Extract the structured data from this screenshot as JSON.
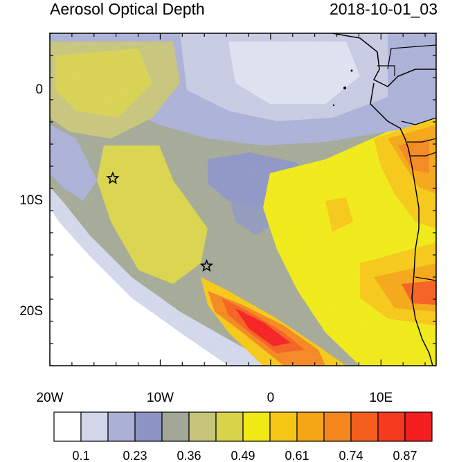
{
  "title": "Aerosol Optical Depth",
  "timestamp": "2018-10-01_03",
  "map": {
    "x_ticks": [
      {
        "lon": -20,
        "label": "20W"
      },
      {
        "lon": -10,
        "label": "10W"
      },
      {
        "lon": 0,
        "label": "0"
      },
      {
        "lon": 10,
        "label": "10E"
      }
    ],
    "y_ticks": [
      {
        "lat": 0,
        "label": "0"
      },
      {
        "lat": -10,
        "label": "10S"
      },
      {
        "lat": -20,
        "label": "20S"
      }
    ],
    "lon_range": [
      -20,
      15
    ],
    "lat_range": [
      -25,
      5
    ],
    "markers": [
      {
        "name": "star-marker",
        "lon": -14.3,
        "lat": -8.1
      },
      {
        "name": "star-marker",
        "lon": -5.8,
        "lat": -16.0
      }
    ]
  },
  "colorbar": {
    "colors": [
      "#ffffff",
      "#d2d6ea",
      "#aab0d6",
      "#8c95c4",
      "#a3a896",
      "#c6c47a",
      "#d9d34a",
      "#efe914",
      "#f5c714",
      "#f4a614",
      "#f4861e",
      "#f45f1e",
      "#f4391e",
      "#f41e1e"
    ],
    "labels": [
      "0.1",
      "0.23",
      "0.36",
      "0.49",
      "0.61",
      "0.74",
      "0.87"
    ]
  }
}
